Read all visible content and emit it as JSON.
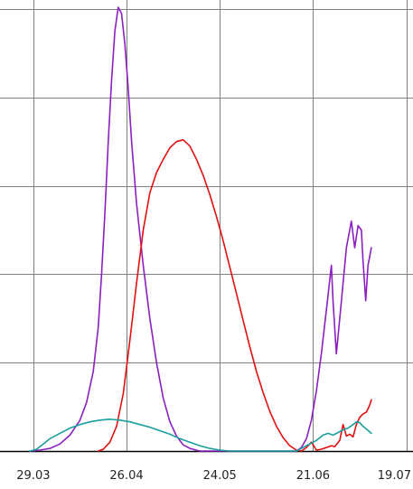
{
  "chart_data": {
    "type": "line",
    "title": "",
    "xlabel": "",
    "ylabel": "",
    "x_tick_labels": [
      "29.03",
      "26.04",
      "24.05",
      "21.06",
      "19.07"
    ],
    "x_tick_days": [
      0,
      28,
      56,
      84,
      112
    ],
    "xlim_days": [
      -10,
      114
    ],
    "ylim": [
      0,
      5
    ],
    "y_gridlines": [
      1,
      2,
      3,
      4,
      5
    ],
    "grid": true,
    "legend": "none",
    "series": [
      {
        "color": "#8b1fc0",
        "points": [
          [
            -1,
            0
          ],
          [
            2,
            0.01
          ],
          [
            5,
            0.03
          ],
          [
            8,
            0.08
          ],
          [
            11,
            0.18
          ],
          [
            14,
            0.35
          ],
          [
            16,
            0.55
          ],
          [
            18,
            0.9
          ],
          [
            19.5,
            1.4
          ],
          [
            20.5,
            2.0
          ],
          [
            21.5,
            2.7
          ],
          [
            22.5,
            3.5
          ],
          [
            23.5,
            4.2
          ],
          [
            24.5,
            4.75
          ],
          [
            25.5,
            5.02
          ],
          [
            26.5,
            4.95
          ],
          [
            27.5,
            4.6
          ],
          [
            28.5,
            4.1
          ],
          [
            29.5,
            3.5
          ],
          [
            31,
            2.8
          ],
          [
            33,
            2.1
          ],
          [
            35,
            1.5
          ],
          [
            37,
            1.0
          ],
          [
            39,
            0.6
          ],
          [
            41,
            0.33
          ],
          [
            43,
            0.17
          ],
          [
            45,
            0.07
          ],
          [
            47,
            0.03
          ],
          [
            50,
            0
          ],
          [
            79,
            0
          ],
          [
            80.5,
            0.04
          ],
          [
            82,
            0.14
          ],
          [
            83.5,
            0.35
          ],
          [
            85,
            0.68
          ],
          [
            86.5,
            1.1
          ],
          [
            88,
            1.6
          ],
          [
            89.5,
            2.1
          ],
          [
            90,
            1.7
          ],
          [
            91,
            1.1
          ],
          [
            92.5,
            1.7
          ],
          [
            94,
            2.3
          ],
          [
            95.5,
            2.6
          ],
          [
            96.5,
            2.3
          ],
          [
            97.5,
            2.55
          ],
          [
            98.5,
            2.5
          ],
          [
            99,
            2.15
          ],
          [
            99.8,
            1.7
          ],
          [
            100.5,
            2.1
          ],
          [
            101.5,
            2.3
          ]
        ]
      },
      {
        "color": "#e01010",
        "points": [
          [
            19.5,
            0
          ],
          [
            21,
            0.02
          ],
          [
            23,
            0.1
          ],
          [
            25,
            0.28
          ],
          [
            27,
            0.65
          ],
          [
            29,
            1.25
          ],
          [
            31,
            1.9
          ],
          [
            33,
            2.5
          ],
          [
            35,
            2.92
          ],
          [
            37,
            3.15
          ],
          [
            39,
            3.3
          ],
          [
            41,
            3.43
          ],
          [
            43,
            3.5
          ],
          [
            45,
            3.52
          ],
          [
            47,
            3.45
          ],
          [
            49,
            3.3
          ],
          [
            51,
            3.12
          ],
          [
            53,
            2.9
          ],
          [
            55,
            2.65
          ],
          [
            57,
            2.38
          ],
          [
            59,
            2.08
          ],
          [
            61,
            1.78
          ],
          [
            63,
            1.48
          ],
          [
            65,
            1.18
          ],
          [
            67,
            0.9
          ],
          [
            69,
            0.66
          ],
          [
            71,
            0.45
          ],
          [
            73,
            0.28
          ],
          [
            75,
            0.15
          ],
          [
            77,
            0.06
          ],
          [
            79,
            0.01
          ],
          [
            80.5,
            0
          ],
          [
            82,
            0.04
          ],
          [
            83.5,
            0.1
          ],
          [
            85,
            0.01
          ],
          [
            86.5,
            0.02
          ],
          [
            88,
            0.04
          ],
          [
            89.5,
            0.06
          ],
          [
            90.5,
            0.05
          ],
          [
            92,
            0.12
          ],
          [
            93,
            0.3
          ],
          [
            94,
            0.17
          ],
          [
            95,
            0.19
          ],
          [
            96,
            0.16
          ],
          [
            97,
            0.3
          ],
          [
            98,
            0.38
          ],
          [
            99,
            0.42
          ],
          [
            100,
            0.44
          ],
          [
            101,
            0.52
          ],
          [
            101.5,
            0.58
          ]
        ]
      },
      {
        "color": "#1a9e9e",
        "points": [
          [
            -1,
            0
          ],
          [
            1,
            0.02
          ],
          [
            3,
            0.08
          ],
          [
            5,
            0.14
          ],
          [
            8,
            0.2
          ],
          [
            11,
            0.26
          ],
          [
            14,
            0.3
          ],
          [
            17,
            0.33
          ],
          [
            20,
            0.35
          ],
          [
            23,
            0.36
          ],
          [
            26,
            0.35
          ],
          [
            29,
            0.33
          ],
          [
            32,
            0.3
          ],
          [
            35,
            0.27
          ],
          [
            38,
            0.23
          ],
          [
            41,
            0.19
          ],
          [
            44,
            0.14
          ],
          [
            47,
            0.1
          ],
          [
            50,
            0.06
          ],
          [
            53,
            0.03
          ],
          [
            56,
            0.01
          ],
          [
            59,
            0
          ],
          [
            79,
            0
          ],
          [
            81,
            0.04
          ],
          [
            83,
            0.08
          ],
          [
            85,
            0.12
          ],
          [
            87,
            0.18
          ],
          [
            88.5,
            0.2
          ],
          [
            90,
            0.18
          ],
          [
            91.5,
            0.21
          ],
          [
            93,
            0.24
          ],
          [
            94.5,
            0.26
          ],
          [
            96,
            0.3
          ],
          [
            97,
            0.33
          ],
          [
            98,
            0.32
          ],
          [
            99,
            0.28
          ],
          [
            100,
            0.25
          ],
          [
            101.5,
            0.2
          ]
        ]
      }
    ]
  }
}
